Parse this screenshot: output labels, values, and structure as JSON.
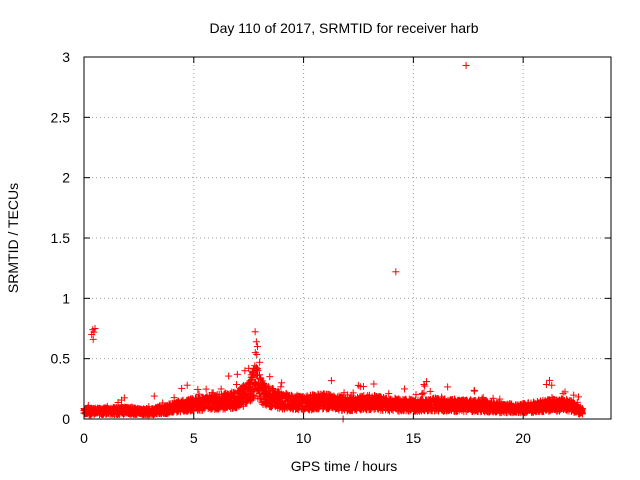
{
  "chart_data": {
    "type": "scatter",
    "title": "Day 110 of 2017, SRMTID for receiver harb",
    "xlabel": "GPS time / hours",
    "ylabel": "SRMTID / TECUs",
    "xlim": [
      0,
      24
    ],
    "ylim": [
      0,
      3
    ],
    "xticks": [
      0,
      5,
      10,
      15,
      20
    ],
    "yticks": [
      0,
      0.5,
      1,
      1.5,
      2,
      2.5,
      3
    ],
    "xtick_labels": [
      "0",
      "5",
      "10",
      "15",
      "20"
    ],
    "ytick_labels": [
      "0",
      "0.5",
      "1",
      "1.5",
      "2",
      "2.5",
      "3"
    ],
    "grid": true,
    "marker": "+",
    "color": "#ff0000",
    "baseline_profile": [
      [
        0,
        0.06
      ],
      [
        1,
        0.065
      ],
      [
        2,
        0.07
      ],
      [
        3,
        0.06
      ],
      [
        3.7,
        0.08
      ],
      [
        4.5,
        0.11
      ],
      [
        5,
        0.12
      ],
      [
        6,
        0.14
      ],
      [
        7,
        0.16
      ],
      [
        7.5,
        0.22
      ],
      [
        7.8,
        0.32
      ],
      [
        8.2,
        0.2
      ],
      [
        9,
        0.15
      ],
      [
        10,
        0.13
      ],
      [
        11,
        0.15
      ],
      [
        12,
        0.12
      ],
      [
        13,
        0.14
      ],
      [
        14,
        0.12
      ],
      [
        15,
        0.11
      ],
      [
        16,
        0.12
      ],
      [
        17,
        0.11
      ],
      [
        18,
        0.11
      ],
      [
        19,
        0.09
      ],
      [
        20,
        0.09
      ],
      [
        21,
        0.11
      ],
      [
        22,
        0.12
      ],
      [
        22.7,
        0.06
      ]
    ],
    "x_start": 0,
    "x_end": 22.7,
    "notable_points": [
      {
        "x": 0.4,
        "y": 0.74
      },
      {
        "x": 0.45,
        "y": 0.72
      },
      {
        "x": 0.5,
        "y": 0.75
      },
      {
        "x": 0.35,
        "y": 0.7
      },
      {
        "x": 0.42,
        "y": 0.66
      },
      {
        "x": 3.2,
        "y": 0.19
      },
      {
        "x": 4.7,
        "y": 0.28
      },
      {
        "x": 7.5,
        "y": 0.42
      },
      {
        "x": 7.8,
        "y": 0.55
      },
      {
        "x": 7.85,
        "y": 0.64
      },
      {
        "x": 7.9,
        "y": 0.6
      },
      {
        "x": 8.0,
        "y": 0.47
      },
      {
        "x": 9.0,
        "y": 0.3
      },
      {
        "x": 11.8,
        "y": 0.0
      },
      {
        "x": 13.2,
        "y": 0.29
      },
      {
        "x": 14.2,
        "y": 1.22
      },
      {
        "x": 15.6,
        "y": 0.31
      },
      {
        "x": 17.4,
        "y": 2.93
      },
      {
        "x": 21.2,
        "y": 0.32
      },
      {
        "x": 21.3,
        "y": 0.28
      }
    ]
  }
}
